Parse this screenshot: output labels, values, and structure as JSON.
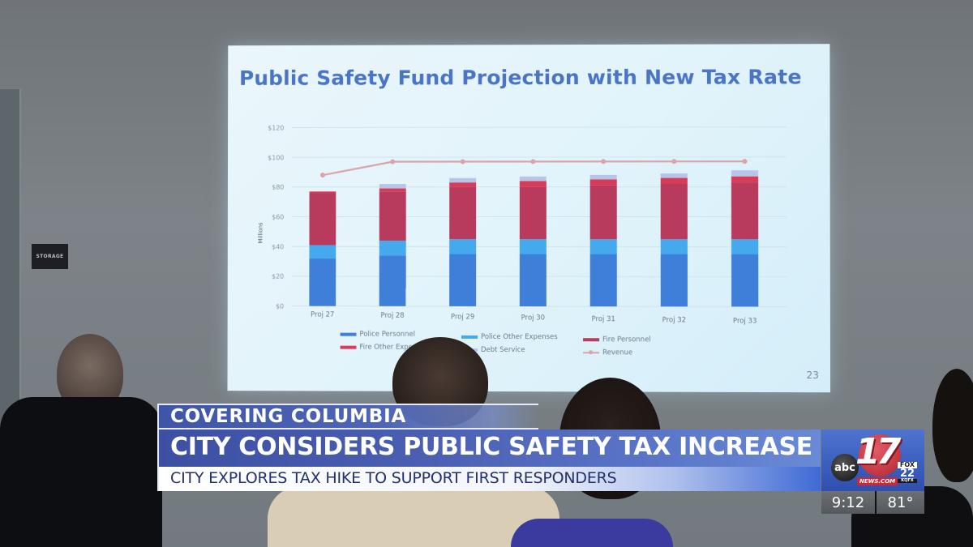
{
  "scene": {
    "description": "News broadcast frame of a public meeting with a projected slide",
    "wall_sign": "STORAGE"
  },
  "slide": {
    "title": "Public Safety Fund Projection with New Tax Rate",
    "page_number": "23"
  },
  "chart_data": {
    "type": "bar",
    "subtype": "stacked bar with line overlay",
    "title": "Public Safety Fund Projection with New Tax Rate",
    "xlabel": "",
    "ylabel": "Millions",
    "ylim": [
      0,
      120
    ],
    "yticks": [
      "$0",
      "$20",
      "$40",
      "$60",
      "$80",
      "$100",
      "$120"
    ],
    "grid": true,
    "legend_position": "bottom",
    "categories": [
      "Proj 27",
      "Proj 28",
      "Proj 29",
      "Proj 30",
      "Proj 31",
      "Proj 32",
      "Proj 33"
    ],
    "series": [
      {
        "name": "Police Personnel",
        "type": "bar",
        "color": "#3f7fd9",
        "values": [
          32,
          34,
          35,
          35,
          35,
          35,
          35
        ]
      },
      {
        "name": "Police Other Expenses",
        "type": "bar",
        "color": "#45a9ee",
        "values": [
          9,
          10,
          10,
          10,
          10,
          10,
          10
        ]
      },
      {
        "name": "Fire Personnel",
        "type": "bar",
        "color": "#b83a5c",
        "values": [
          35,
          33,
          35,
          35,
          36,
          37,
          38
        ]
      },
      {
        "name": "Fire Other Expenses",
        "type": "bar",
        "color": "#d93a57",
        "values": [
          1,
          2,
          3,
          4,
          4,
          4,
          4
        ]
      },
      {
        "name": "Debt Service",
        "type": "bar",
        "color": "#b7c6e8",
        "values": [
          0,
          3,
          3,
          3,
          3,
          3,
          4
        ]
      },
      {
        "name": "Revenue",
        "type": "line",
        "color": "#d9a3a8",
        "values": [
          88,
          97,
          97,
          97,
          97,
          97,
          97
        ]
      }
    ]
  },
  "legend": [
    {
      "label": "Police Personnel",
      "color": "#3f7fd9",
      "kind": "bar"
    },
    {
      "label": "Police Other Expenses",
      "color": "#45a9ee",
      "kind": "bar"
    },
    {
      "label": "Fire Personnel",
      "color": "#b83a5c",
      "kind": "bar"
    },
    {
      "label": "Fire Other Expenses",
      "color": "#d93a57",
      "kind": "bar"
    },
    {
      "label": "Debt Service",
      "color": "#b7c6e8",
      "kind": "bar"
    },
    {
      "label": "Revenue",
      "color": "#d9a3a8",
      "kind": "line"
    }
  ],
  "lower_third": {
    "kicker": "COVERING COLUMBIA",
    "headline": "CITY CONSIDERS PUBLIC SAFETY TAX INCREASE",
    "subheadline": "CITY EXPLORES TAX HIKE TO SUPPORT FIRST RESPONDERS"
  },
  "station": {
    "abc": "abc",
    "channel": "17",
    "site": "NEWS.COM",
    "fox": "FOX",
    "fox_channel": "22",
    "fox_call": "KQFX",
    "time": "9:12",
    "temperature": "81°"
  },
  "colors": {
    "lower_third_blue": "#3e55a8",
    "subhead_text": "#22306f",
    "slide_title": "#4a74c6"
  }
}
